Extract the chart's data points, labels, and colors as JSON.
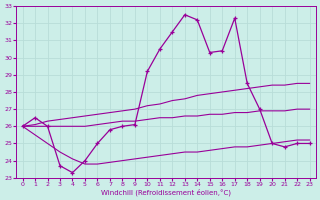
{
  "xlabel": "Windchill (Refroidissement éolien,°C)",
  "xlim": [
    -0.5,
    23.5
  ],
  "ylim": [
    23,
    33
  ],
  "xticks": [
    0,
    1,
    2,
    3,
    4,
    5,
    6,
    7,
    8,
    9,
    10,
    11,
    12,
    13,
    14,
    15,
    16,
    17,
    18,
    19,
    20,
    21,
    22,
    23
  ],
  "yticks": [
    23,
    24,
    25,
    26,
    27,
    28,
    29,
    30,
    31,
    32,
    33
  ],
  "bg_color": "#cceee8",
  "line_color": "#990099",
  "grid_color": "#b8ddd8",
  "series": {
    "main": {
      "x": [
        0,
        1,
        2,
        3,
        4,
        5,
        6,
        7,
        8,
        9,
        10,
        11,
        12,
        13,
        14,
        15,
        16,
        17,
        18,
        19,
        20,
        21,
        22,
        23
      ],
      "y": [
        26.0,
        26.5,
        26.0,
        23.7,
        23.3,
        24.0,
        25.0,
        25.8,
        26.0,
        26.1,
        29.2,
        30.5,
        31.5,
        32.5,
        32.2,
        30.3,
        30.4,
        32.3,
        28.5,
        27.0,
        25.0,
        24.8,
        25.0,
        25.0
      ]
    },
    "upper_band": {
      "x": [
        0,
        1,
        2,
        3,
        4,
        5,
        6,
        7,
        8,
        9,
        10,
        11,
        12,
        13,
        14,
        15,
        16,
        17,
        18,
        19,
        20,
        21,
        22,
        23
      ],
      "y": [
        26.0,
        26.1,
        26.3,
        26.4,
        26.5,
        26.6,
        26.7,
        26.8,
        26.9,
        27.0,
        27.2,
        27.3,
        27.5,
        27.6,
        27.8,
        27.9,
        28.0,
        28.1,
        28.2,
        28.3,
        28.4,
        28.4,
        28.5,
        28.5
      ]
    },
    "mid_band": {
      "x": [
        0,
        1,
        2,
        3,
        4,
        5,
        6,
        7,
        8,
        9,
        10,
        11,
        12,
        13,
        14,
        15,
        16,
        17,
        18,
        19,
        20,
        21,
        22,
        23
      ],
      "y": [
        26.0,
        26.0,
        26.0,
        26.0,
        26.0,
        26.0,
        26.1,
        26.2,
        26.3,
        26.3,
        26.4,
        26.5,
        26.5,
        26.6,
        26.6,
        26.7,
        26.7,
        26.8,
        26.8,
        26.9,
        26.9,
        26.9,
        27.0,
        27.0
      ]
    },
    "lower_band": {
      "x": [
        0,
        1,
        2,
        3,
        4,
        5,
        6,
        7,
        8,
        9,
        10,
        11,
        12,
        13,
        14,
        15,
        16,
        17,
        18,
        19,
        20,
        21,
        22,
        23
      ],
      "y": [
        26.0,
        25.5,
        25.0,
        24.5,
        24.1,
        23.8,
        23.8,
        23.9,
        24.0,
        24.1,
        24.2,
        24.3,
        24.4,
        24.5,
        24.5,
        24.6,
        24.7,
        24.8,
        24.8,
        24.9,
        25.0,
        25.1,
        25.2,
        25.2
      ]
    }
  }
}
